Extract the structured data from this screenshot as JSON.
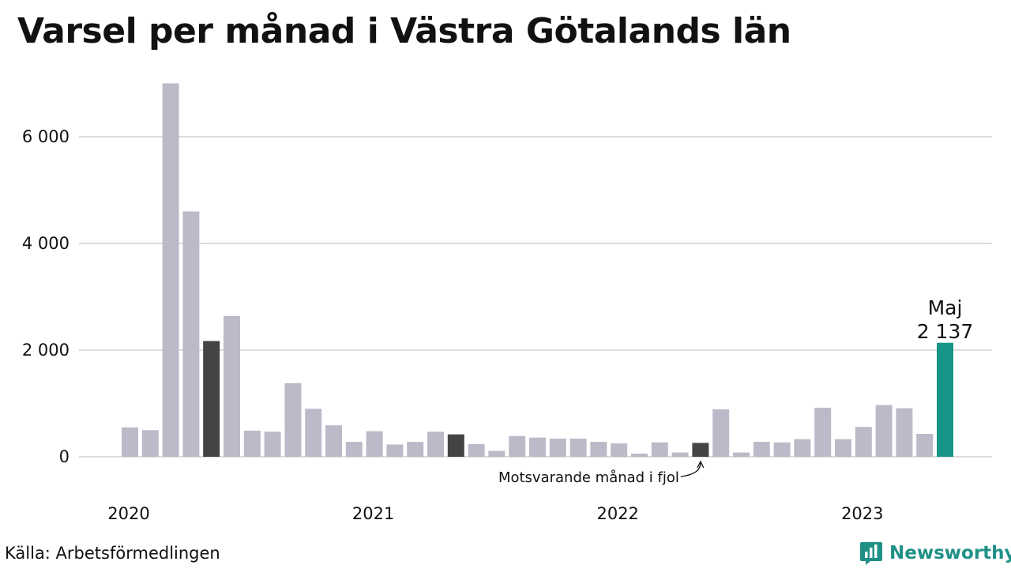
{
  "title": "Varsel per månad i Västra Götalands län",
  "source": "Källa: Arbetsförmedlingen",
  "brand": {
    "name": "Newsworthy",
    "icon": "bar-chart-icon",
    "color": "#1f9186"
  },
  "colors": {
    "default_bar": "#bcbac8",
    "same_month_prev_years": "#444444",
    "highlight": "#179587",
    "grid": "#dddddd"
  },
  "chart_data": {
    "type": "bar",
    "title": "Varsel per månad i Västra Götalands län",
    "xlabel": "",
    "ylabel": "",
    "ylim": [
      0,
      7000
    ],
    "yticks": [
      0,
      2000,
      4000,
      6000
    ],
    "ytick_labels": [
      "0",
      "2 000",
      "4 000",
      "6 000"
    ],
    "year_labels": [
      {
        "label": "2020",
        "month_index": 0
      },
      {
        "label": "2021",
        "month_index": 12
      },
      {
        "label": "2022",
        "month_index": 24
      },
      {
        "label": "2023",
        "month_index": 36
      }
    ],
    "categories": [
      "2020-01",
      "2020-02",
      "2020-03",
      "2020-04",
      "2020-05",
      "2020-06",
      "2020-07",
      "2020-08",
      "2020-09",
      "2020-10",
      "2020-11",
      "2020-12",
      "2021-01",
      "2021-02",
      "2021-03",
      "2021-04",
      "2021-05",
      "2021-06",
      "2021-07",
      "2021-08",
      "2021-09",
      "2021-10",
      "2021-11",
      "2021-12",
      "2022-01",
      "2022-02",
      "2022-03",
      "2022-04",
      "2022-05",
      "2022-06",
      "2022-07",
      "2022-08",
      "2022-09",
      "2022-10",
      "2022-11",
      "2022-12",
      "2023-01",
      "2023-02",
      "2023-03",
      "2023-04",
      "2023-05"
    ],
    "values": [
      550,
      500,
      7000,
      4600,
      2170,
      2640,
      490,
      470,
      1380,
      900,
      590,
      280,
      480,
      230,
      280,
      470,
      420,
      240,
      110,
      390,
      360,
      340,
      340,
      280,
      250,
      60,
      270,
      80,
      260,
      890,
      80,
      280,
      270,
      330,
      920,
      330,
      560,
      970,
      910,
      430,
      2137
    ],
    "bar_kinds": [
      "default",
      "default",
      "default",
      "default",
      "previous",
      "default",
      "default",
      "default",
      "default",
      "default",
      "default",
      "default",
      "default",
      "default",
      "default",
      "default",
      "previous",
      "default",
      "default",
      "default",
      "default",
      "default",
      "default",
      "default",
      "default",
      "default",
      "default",
      "default",
      "previous",
      "default",
      "default",
      "default",
      "default",
      "default",
      "default",
      "default",
      "default",
      "default",
      "default",
      "default",
      "highlight"
    ],
    "highlight_label": {
      "month": "Maj",
      "value": "2 137"
    },
    "annotation": {
      "text": "Motsvarande månad i fjol",
      "month_index": 28
    },
    "grid": true,
    "legend": "none"
  }
}
